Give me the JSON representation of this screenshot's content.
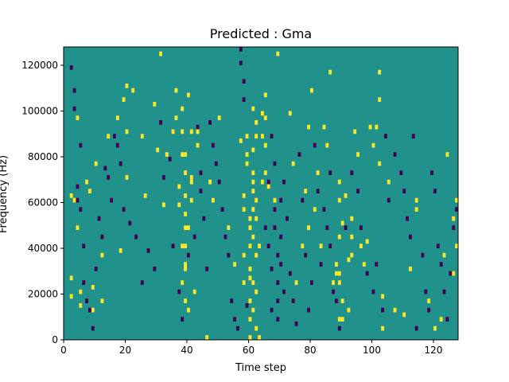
{
  "chart_data": {
    "type": "heatmap",
    "title": "Predicted : Gma",
    "xlabel": "Time step",
    "ylabel": "Frequency (Hz)",
    "xlim": [
      0,
      128
    ],
    "ylim": [
      0,
      128000
    ],
    "xticks": [
      0,
      20,
      40,
      60,
      80,
      100,
      120
    ],
    "yticks": [
      0,
      20000,
      40000,
      60000,
      80000,
      100000,
      120000
    ],
    "x_tick_labels": [
      "0",
      "20",
      "40",
      "60",
      "80",
      "100",
      "120"
    ],
    "y_tick_labels": [
      "0",
      "20000",
      "40000",
      "60000",
      "80000",
      "100000",
      "120000"
    ],
    "n_time_steps": 128,
    "n_frequency_bins": 64,
    "frequency_bin_hz": 2000,
    "colormap": "viridis",
    "value_range": [
      -1,
      1
    ],
    "colors": {
      "background_value_0": "#21918c",
      "value_1": "#fde725",
      "value_neg_1": "#440154"
    },
    "cells_value_1": [
      [
        2,
        31
      ],
      [
        2,
        13
      ],
      [
        2,
        9
      ],
      [
        3,
        30
      ],
      [
        4,
        24
      ],
      [
        4,
        48
      ],
      [
        5,
        7
      ],
      [
        5,
        10
      ],
      [
        7,
        34
      ],
      [
        8,
        32
      ],
      [
        9,
        11
      ],
      [
        9,
        6
      ],
      [
        10,
        38
      ],
      [
        12,
        18
      ],
      [
        12,
        8
      ],
      [
        14,
        44
      ],
      [
        17,
        48
      ],
      [
        18,
        19
      ],
      [
        19,
        52
      ],
      [
        20,
        55
      ],
      [
        20,
        45
      ],
      [
        20,
        35
      ],
      [
        22,
        54
      ],
      [
        25,
        44
      ],
      [
        26,
        31
      ],
      [
        29,
        51
      ],
      [
        30,
        41
      ],
      [
        31,
        62
      ],
      [
        32,
        29
      ],
      [
        33,
        40
      ],
      [
        35,
        45
      ],
      [
        36,
        48
      ],
      [
        36,
        54
      ],
      [
        37,
        29
      ],
      [
        37,
        33
      ],
      [
        38,
        45
      ],
      [
        38,
        50
      ],
      [
        38,
        40
      ],
      [
        38,
        20
      ],
      [
        38,
        12
      ],
      [
        39,
        16
      ],
      [
        39,
        40
      ],
      [
        39,
        36
      ],
      [
        39,
        31
      ],
      [
        39,
        27
      ],
      [
        39,
        24
      ],
      [
        39,
        20
      ],
      [
        39,
        15
      ],
      [
        39,
        8
      ],
      [
        40,
        24
      ],
      [
        40,
        6
      ],
      [
        40,
        53
      ],
      [
        41,
        34
      ],
      [
        41,
        35
      ],
      [
        41,
        30
      ],
      [
        41,
        45
      ],
      [
        42,
        10
      ],
      [
        43,
        45
      ],
      [
        43,
        42
      ],
      [
        46,
        0
      ],
      [
        47,
        34
      ],
      [
        48,
        30
      ],
      [
        50,
        48
      ],
      [
        53,
        24
      ],
      [
        55,
        16
      ],
      [
        57,
        43
      ],
      [
        58,
        31
      ],
      [
        58,
        28
      ],
      [
        58,
        18
      ],
      [
        58,
        12
      ],
      [
        59,
        40
      ],
      [
        59,
        44
      ],
      [
        59,
        38
      ],
      [
        60,
        26
      ],
      [
        60,
        24
      ],
      [
        60,
        20
      ],
      [
        60,
        15
      ],
      [
        60,
        13
      ],
      [
        60,
        8
      ],
      [
        60,
        4
      ],
      [
        60,
        0
      ],
      [
        61,
        50
      ],
      [
        61,
        41
      ],
      [
        61,
        36
      ],
      [
        61,
        34
      ],
      [
        61,
        32
      ],
      [
        61,
        28
      ],
      [
        61,
        22
      ],
      [
        61,
        12
      ],
      [
        61,
        6
      ],
      [
        62,
        44
      ],
      [
        62,
        47
      ],
      [
        62,
        30
      ],
      [
        62,
        26
      ],
      [
        62,
        18
      ],
      [
        62,
        10
      ],
      [
        62,
        2
      ],
      [
        63,
        20
      ],
      [
        63,
        0
      ],
      [
        64,
        34
      ],
      [
        64,
        44
      ],
      [
        64,
        49
      ],
      [
        65,
        36
      ],
      [
        65,
        42
      ],
      [
        65,
        48
      ],
      [
        65,
        53
      ],
      [
        66,
        33
      ],
      [
        68,
        30
      ],
      [
        69,
        62
      ],
      [
        73,
        49
      ],
      [
        74,
        38
      ],
      [
        75,
        12
      ],
      [
        77,
        20
      ],
      [
        78,
        32
      ],
      [
        79,
        24
      ],
      [
        79,
        46
      ],
      [
        80,
        54
      ],
      [
        81,
        28
      ],
      [
        82,
        36
      ],
      [
        83,
        20
      ],
      [
        84,
        46
      ],
      [
        85,
        42
      ],
      [
        86,
        58
      ],
      [
        87,
        12
      ],
      [
        88,
        16
      ],
      [
        88,
        14
      ],
      [
        89,
        12
      ],
      [
        89,
        4
      ],
      [
        89,
        34
      ],
      [
        89,
        30
      ],
      [
        89,
        22
      ],
      [
        89,
        14
      ],
      [
        90,
        25
      ],
      [
        90,
        8
      ],
      [
        90,
        4
      ],
      [
        91,
        31
      ],
      [
        92,
        17
      ],
      [
        92,
        6
      ],
      [
        93,
        26
      ],
      [
        93,
        22
      ],
      [
        93,
        18
      ],
      [
        94,
        45
      ],
      [
        95,
        40
      ],
      [
        96,
        20
      ],
      [
        97,
        16
      ],
      [
        98,
        21
      ],
      [
        99,
        46
      ],
      [
        100,
        42
      ],
      [
        101,
        46
      ],
      [
        102,
        52
      ],
      [
        102,
        58
      ],
      [
        102,
        38
      ],
      [
        103,
        2
      ],
      [
        103,
        9
      ],
      [
        105,
        34
      ],
      [
        107,
        6
      ],
      [
        110,
        5
      ],
      [
        112,
        15
      ],
      [
        114,
        28
      ],
      [
        114,
        30
      ],
      [
        118,
        8
      ],
      [
        120,
        2
      ],
      [
        122,
        4
      ],
      [
        123,
        18
      ],
      [
        124,
        40
      ],
      [
        126,
        26
      ],
      [
        127,
        20
      ],
      [
        126,
        14
      ],
      [
        127,
        30
      ]
    ],
    "cells_value_neg_1": [
      [
        2,
        59
      ],
      [
        3,
        54
      ],
      [
        3,
        50
      ],
      [
        4,
        33
      ],
      [
        4,
        30
      ],
      [
        5,
        28
      ],
      [
        5,
        42
      ],
      [
        6,
        20
      ],
      [
        6,
        12
      ],
      [
        7,
        8
      ],
      [
        8,
        6
      ],
      [
        9,
        2
      ],
      [
        10,
        15
      ],
      [
        11,
        26
      ],
      [
        12,
        22
      ],
      [
        13,
        37
      ],
      [
        14,
        35
      ],
      [
        15,
        30
      ],
      [
        16,
        44
      ],
      [
        17,
        42
      ],
      [
        18,
        38
      ],
      [
        19,
        28
      ],
      [
        21,
        25
      ],
      [
        23,
        22
      ],
      [
        25,
        12
      ],
      [
        27,
        19
      ],
      [
        29,
        15
      ],
      [
        31,
        47
      ],
      [
        32,
        35
      ],
      [
        34,
        39
      ],
      [
        35,
        20
      ],
      [
        37,
        10
      ],
      [
        38,
        4
      ],
      [
        40,
        18
      ],
      [
        42,
        22
      ],
      [
        43,
        46
      ],
      [
        44,
        36
      ],
      [
        44,
        32
      ],
      [
        45,
        26
      ],
      [
        46,
        15
      ],
      [
        47,
        47
      ],
      [
        48,
        42
      ],
      [
        49,
        38
      ],
      [
        50,
        34
      ],
      [
        51,
        28
      ],
      [
        52,
        22
      ],
      [
        53,
        18
      ],
      [
        54,
        8
      ],
      [
        55,
        4
      ],
      [
        56,
        2
      ],
      [
        57,
        63
      ],
      [
        57,
        60
      ],
      [
        58,
        56
      ],
      [
        58,
        52
      ],
      [
        59,
        7
      ],
      [
        65,
        24
      ],
      [
        66,
        20
      ],
      [
        66,
        34
      ],
      [
        67,
        15
      ],
      [
        67,
        6
      ],
      [
        67,
        44
      ],
      [
        68,
        28
      ],
      [
        68,
        38
      ],
      [
        68,
        24
      ],
      [
        69,
        18
      ],
      [
        69,
        12
      ],
      [
        69,
        8
      ],
      [
        69,
        4
      ],
      [
        70,
        30
      ],
      [
        70,
        22
      ],
      [
        70,
        16
      ],
      [
        71,
        34
      ],
      [
        71,
        10
      ],
      [
        72,
        26
      ],
      [
        73,
        14
      ],
      [
        74,
        8
      ],
      [
        75,
        3
      ],
      [
        76,
        40
      ],
      [
        77,
        30
      ],
      [
        78,
        18
      ],
      [
        79,
        6
      ],
      [
        80,
        12
      ],
      [
        81,
        42
      ],
      [
        82,
        32
      ],
      [
        83,
        16
      ],
      [
        84,
        28
      ],
      [
        85,
        24
      ],
      [
        86,
        36
      ],
      [
        86,
        20
      ],
      [
        87,
        10
      ],
      [
        88,
        8
      ],
      [
        89,
        2
      ],
      [
        91,
        24
      ],
      [
        93,
        36
      ],
      [
        95,
        32
      ],
      [
        96,
        24
      ],
      [
        98,
        14
      ],
      [
        100,
        10
      ],
      [
        101,
        16
      ],
      [
        103,
        6
      ],
      [
        104,
        44
      ],
      [
        105,
        30
      ],
      [
        107,
        40
      ],
      [
        109,
        36
      ],
      [
        110,
        32
      ],
      [
        111,
        26
      ],
      [
        112,
        22
      ],
      [
        113,
        44
      ],
      [
        114,
        2
      ],
      [
        116,
        18
      ],
      [
        117,
        10
      ],
      [
        118,
        6
      ],
      [
        119,
        36
      ],
      [
        120,
        32
      ],
      [
        121,
        20
      ],
      [
        122,
        16
      ],
      [
        123,
        10
      ],
      [
        124,
        4
      ],
      [
        125,
        14
      ],
      [
        126,
        24
      ],
      [
        127,
        28
      ]
    ]
  }
}
